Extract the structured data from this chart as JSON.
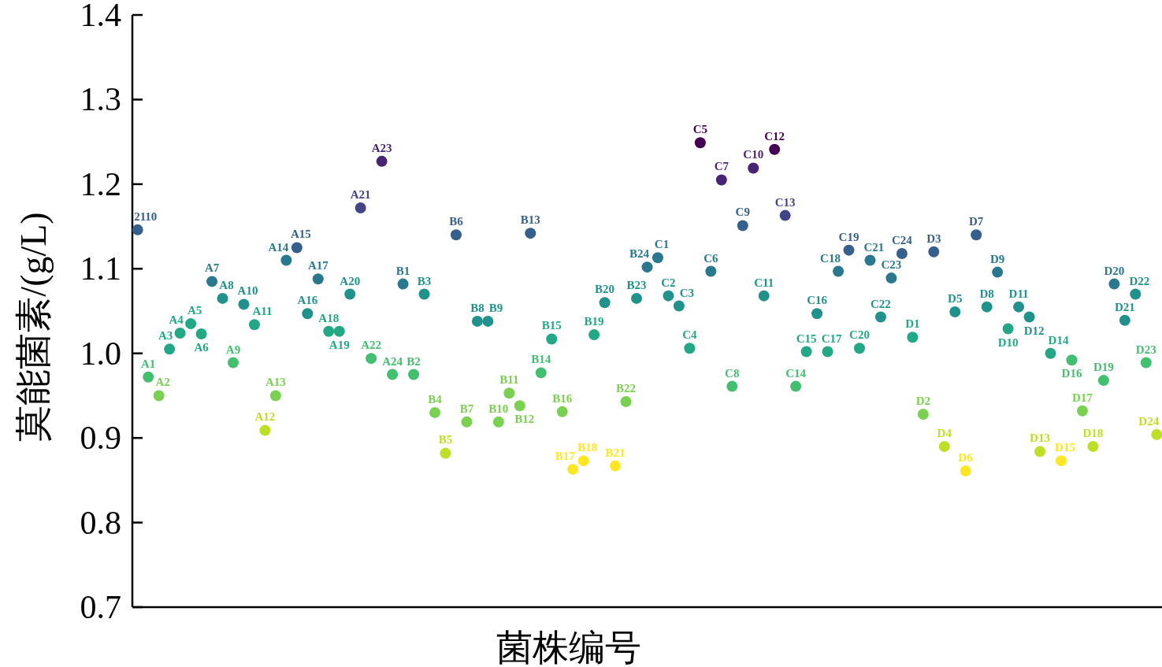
{
  "chart_data": {
    "type": "scatter",
    "ylabel": "莫能菌素/(g/L)",
    "xlabel": "菌株编号",
    "categories": [
      null,
      null,
      null,
      null,
      null,
      null,
      null,
      null,
      null,
      null,
      null,
      null,
      null,
      null,
      null,
      null,
      null,
      null,
      null,
      null,
      null,
      null,
      null,
      null,
      null,
      null,
      null,
      null,
      null,
      null,
      null,
      null,
      null,
      null,
      null,
      null,
      null,
      null,
      null,
      null,
      null,
      null,
      null,
      null,
      null,
      null,
      null,
      null,
      null,
      null,
      null,
      null,
      null,
      null,
      null,
      null,
      null,
      null,
      null,
      null,
      null,
      null,
      null,
      null,
      null,
      null,
      null,
      null,
      null,
      null,
      null,
      null,
      null,
      null,
      null,
      null,
      null,
      null,
      null,
      null,
      null,
      null,
      null,
      null,
      null,
      null,
      null,
      null,
      null,
      null,
      null,
      null,
      null,
      null,
      null,
      null,
      null
    ],
    "values": [
      1.146,
      0.972,
      0.95,
      1.005,
      1.024,
      1.035,
      1.023,
      1.085,
      1.065,
      0.989,
      1.058,
      1.034,
      0.909,
      0.95,
      1.11,
      1.125,
      1.047,
      1.088,
      1.026,
      1.026,
      1.07,
      1.172,
      0.994,
      1.227,
      0.975,
      1.082,
      0.975,
      1.07,
      0.93,
      0.882,
      1.14,
      0.919,
      1.038,
      1.038,
      0.919,
      0.953,
      0.938,
      1.142,
      0.977,
      1.017,
      0.931,
      0.863,
      0.873,
      1.022,
      1.06,
      0.867,
      0.943,
      1.065,
      1.102,
      1.113,
      1.068,
      1.056,
      1.006,
      1.249,
      1.097,
      1.205,
      0.961,
      1.151,
      1.219,
      1.068,
      1.241,
      1.163,
      0.961,
      1.002,
      1.047,
      1.002,
      1.097,
      1.122,
      1.006,
      1.11,
      1.043,
      1.089,
      1.118,
      1.019,
      0.928,
      1.12,
      0.89,
      1.049,
      0.861,
      1.14,
      1.055,
      1.096,
      1.029,
      1.055,
      1.043,
      0.884,
      1.0,
      0.873,
      0.992,
      0.932,
      0.89,
      0.968,
      1.082,
      1.039,
      1.07,
      0.989,
      0.904
    ],
    "colors": [
      "#355f8d",
      "#44bf70",
      "#7ad151",
      "#22a884",
      "#22a884",
      "#22a884",
      "#22a884",
      "#2a788e",
      "#21918c",
      "#44bf70",
      "#21918c",
      "#22a884",
      "#bddf26",
      "#7ad151",
      "#2a788e",
      "#355f8d",
      "#21918c",
      "#2a788e",
      "#22a884",
      "#22a884",
      "#21918c",
      "#414487",
      "#44bf70",
      "#482475",
      "#44bf70",
      "#2a788e",
      "#44bf70",
      "#21918c",
      "#7ad151",
      "#bddf26",
      "#355f8d",
      "#7ad151",
      "#21918c",
      "#21918c",
      "#7ad151",
      "#7ad151",
      "#7ad151",
      "#355f8d",
      "#44bf70",
      "#22a884",
      "#7ad151",
      "#fde725",
      "#fde725",
      "#22a884",
      "#21918c",
      "#fde725",
      "#7ad151",
      "#21918c",
      "#2a788e",
      "#2a788e",
      "#21918c",
      "#21918c",
      "#22a884",
      "#440154",
      "#2a788e",
      "#482475",
      "#44bf70",
      "#355f8d",
      "#482475",
      "#21918c",
      "#440154",
      "#414487",
      "#44bf70",
      "#22a884",
      "#21918c",
      "#22a884",
      "#2a788e",
      "#355f8d",
      "#22a884",
      "#2a788e",
      "#21918c",
      "#2a788e",
      "#355f8d",
      "#22a884",
      "#7ad151",
      "#355f8d",
      "#bddf26",
      "#21918c",
      "#fde725",
      "#355f8d",
      "#21918c",
      "#2a788e",
      "#22a884",
      "#21918c",
      "#21918c",
      "#bddf26",
      "#22a884",
      "#fde725",
      "#44bf70",
      "#7ad151",
      "#bddf26",
      "#44bf70",
      "#2a788e",
      "#21918c",
      "#21918c",
      "#44bf70",
      "#bddf26"
    ],
    "annotations": [
      {
        "text": "2110",
        "y": 1.146
      },
      {
        "text": "A1",
        "y": 0.972
      },
      {
        "text": "A2",
        "y": 0.95
      },
      {
        "text": "A3",
        "y": 1.005
      },
      {
        "text": "A4",
        "y": 1.024
      },
      {
        "text": "A5",
        "y": 1.035
      },
      {
        "text": "A6",
        "y": 1.023
      },
      {
        "text": "A7",
        "y": 1.085
      },
      {
        "text": "A8",
        "y": 1.065
      },
      {
        "text": "A9",
        "y": 0.989
      },
      {
        "text": "A10",
        "y": 1.058
      },
      {
        "text": "A11",
        "y": 1.034
      },
      {
        "text": "A12",
        "y": 0.909
      },
      {
        "text": "A13",
        "y": 0.95
      },
      {
        "text": "A14",
        "y": 1.11
      },
      {
        "text": "A15",
        "y": 1.125
      },
      {
        "text": "A16",
        "y": 1.047
      },
      {
        "text": "A17",
        "y": 1.088
      },
      {
        "text": "A18",
        "y": 1.026
      },
      {
        "text": "A19",
        "y": 1.026
      },
      {
        "text": "A20",
        "y": 1.07
      },
      {
        "text": "A21",
        "y": 1.172
      },
      {
        "text": "A22",
        "y": 0.994
      },
      {
        "text": "A23",
        "y": 1.227
      },
      {
        "text": "A24",
        "y": 0.975
      },
      {
        "text": "B1",
        "y": 1.082
      },
      {
        "text": "B2",
        "y": 0.975
      },
      {
        "text": "B3",
        "y": 1.07
      },
      {
        "text": "B4",
        "y": 0.93
      },
      {
        "text": "B5",
        "y": 0.882
      },
      {
        "text": "B6",
        "y": 1.14
      },
      {
        "text": "B7",
        "y": 0.919
      },
      {
        "text": "B8",
        "y": 1.038
      },
      {
        "text": "B9",
        "y": 1.038
      },
      {
        "text": "B10",
        "y": 0.919
      },
      {
        "text": "B11",
        "y": 0.953
      },
      {
        "text": "B12",
        "y": 0.938
      },
      {
        "text": "B13",
        "y": 1.142
      },
      {
        "text": "B14",
        "y": 0.977
      },
      {
        "text": "B15",
        "y": 1.017
      },
      {
        "text": "B16",
        "y": 0.931
      },
      {
        "text": "B17",
        "y": 0.863
      },
      {
        "text": "B18",
        "y": 0.873
      },
      {
        "text": "B19",
        "y": 1.022
      },
      {
        "text": "B20",
        "y": 1.06
      },
      {
        "text": "B21",
        "y": 0.867
      },
      {
        "text": "B22",
        "y": 0.943
      },
      {
        "text": "B23",
        "y": 1.065
      },
      {
        "text": "B24",
        "y": 1.102
      },
      {
        "text": "C1",
        "y": 1.113
      },
      {
        "text": "C2",
        "y": 1.068
      },
      {
        "text": "C3",
        "y": 1.056
      },
      {
        "text": "C4",
        "y": 1.006
      },
      {
        "text": "C5",
        "y": 1.249
      },
      {
        "text": "C6",
        "y": 1.097
      },
      {
        "text": "C7",
        "y": 1.205
      },
      {
        "text": "C8",
        "y": 0.961
      },
      {
        "text": "C9",
        "y": 1.151
      },
      {
        "text": "C10",
        "y": 1.219
      },
      {
        "text": "C11",
        "y": 1.068
      },
      {
        "text": "C12",
        "y": 1.241
      },
      {
        "text": "C13",
        "y": 1.163
      },
      {
        "text": "C14",
        "y": 0.961
      },
      {
        "text": "C15",
        "y": 1.002
      },
      {
        "text": "C16",
        "y": 1.047
      },
      {
        "text": "C17",
        "y": 1.002
      },
      {
        "text": "C18",
        "y": 1.097
      },
      {
        "text": "C19",
        "y": 1.122
      },
      {
        "text": "C20",
        "y": 1.006
      },
      {
        "text": "C21",
        "y": 1.11
      },
      {
        "text": "C22",
        "y": 1.043
      },
      {
        "text": "C23",
        "y": 1.089
      },
      {
        "text": "C24",
        "y": 1.118
      },
      {
        "text": "D1",
        "y": 1.019
      },
      {
        "text": "D2",
        "y": 0.928
      },
      {
        "text": "D3",
        "y": 1.12
      },
      {
        "text": "D4",
        "y": 0.89
      },
      {
        "text": "D5",
        "y": 1.049
      },
      {
        "text": "D6",
        "y": 0.861
      },
      {
        "text": "D7",
        "y": 1.14
      },
      {
        "text": "D8",
        "y": 1.055
      },
      {
        "text": "D9",
        "y": 1.096
      },
      {
        "text": "D10",
        "y": 1.029
      },
      {
        "text": "D11",
        "y": 1.055
      },
      {
        "text": "D12",
        "y": 1.043
      },
      {
        "text": "D13",
        "y": 0.884
      },
      {
        "text": "D14",
        "y": 1.0
      },
      {
        "text": "D15",
        "y": 0.873
      },
      {
        "text": "D16",
        "y": 0.992
      },
      {
        "text": "D17",
        "y": 0.932
      },
      {
        "text": "D18",
        "y": 0.89
      },
      {
        "text": "D19",
        "y": 0.968
      },
      {
        "text": "D20",
        "y": 1.082
      },
      {
        "text": "D21",
        "y": 1.039
      },
      {
        "text": "D22",
        "y": 1.07
      },
      {
        "text": "D23",
        "y": 0.989
      },
      {
        "text": "D24",
        "y": 0.904
      }
    ],
    "ylim": [
      0.7,
      1.4
    ],
    "yticks": [
      0.7,
      0.8,
      0.9,
      {
        "value": 1.0,
        "label": "1.0"
      },
      1.1,
      1.2,
      1.3,
      1.4
    ],
    "tick_labels": "y",
    "marker": "circle",
    "grid": false
  }
}
